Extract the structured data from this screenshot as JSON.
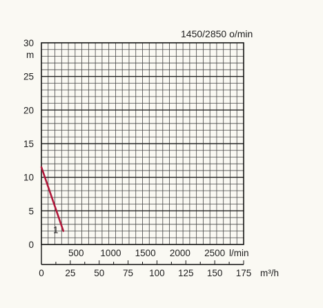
{
  "chart_data": {
    "type": "line",
    "title": "1450/2850 o/min",
    "ylabel": "m",
    "ylim": [
      0,
      30
    ],
    "yticks": [
      0,
      5,
      10,
      15,
      20,
      25,
      30
    ],
    "grid": true,
    "x_lmin": {
      "unit": "l/min",
      "range": [
        0,
        2917
      ],
      "ticks": [
        500,
        1000,
        1500,
        2000,
        2500
      ]
    },
    "x_m3h": {
      "unit": "m³/h",
      "range": [
        0,
        175
      ],
      "ticks": [
        0,
        25,
        50,
        75,
        100,
        125,
        150,
        175
      ]
    },
    "series": [
      {
        "name": "1",
        "color": "#b0173a",
        "x_m3h": [
          0,
          19
        ],
        "y": [
          11.5,
          2
        ]
      }
    ]
  }
}
